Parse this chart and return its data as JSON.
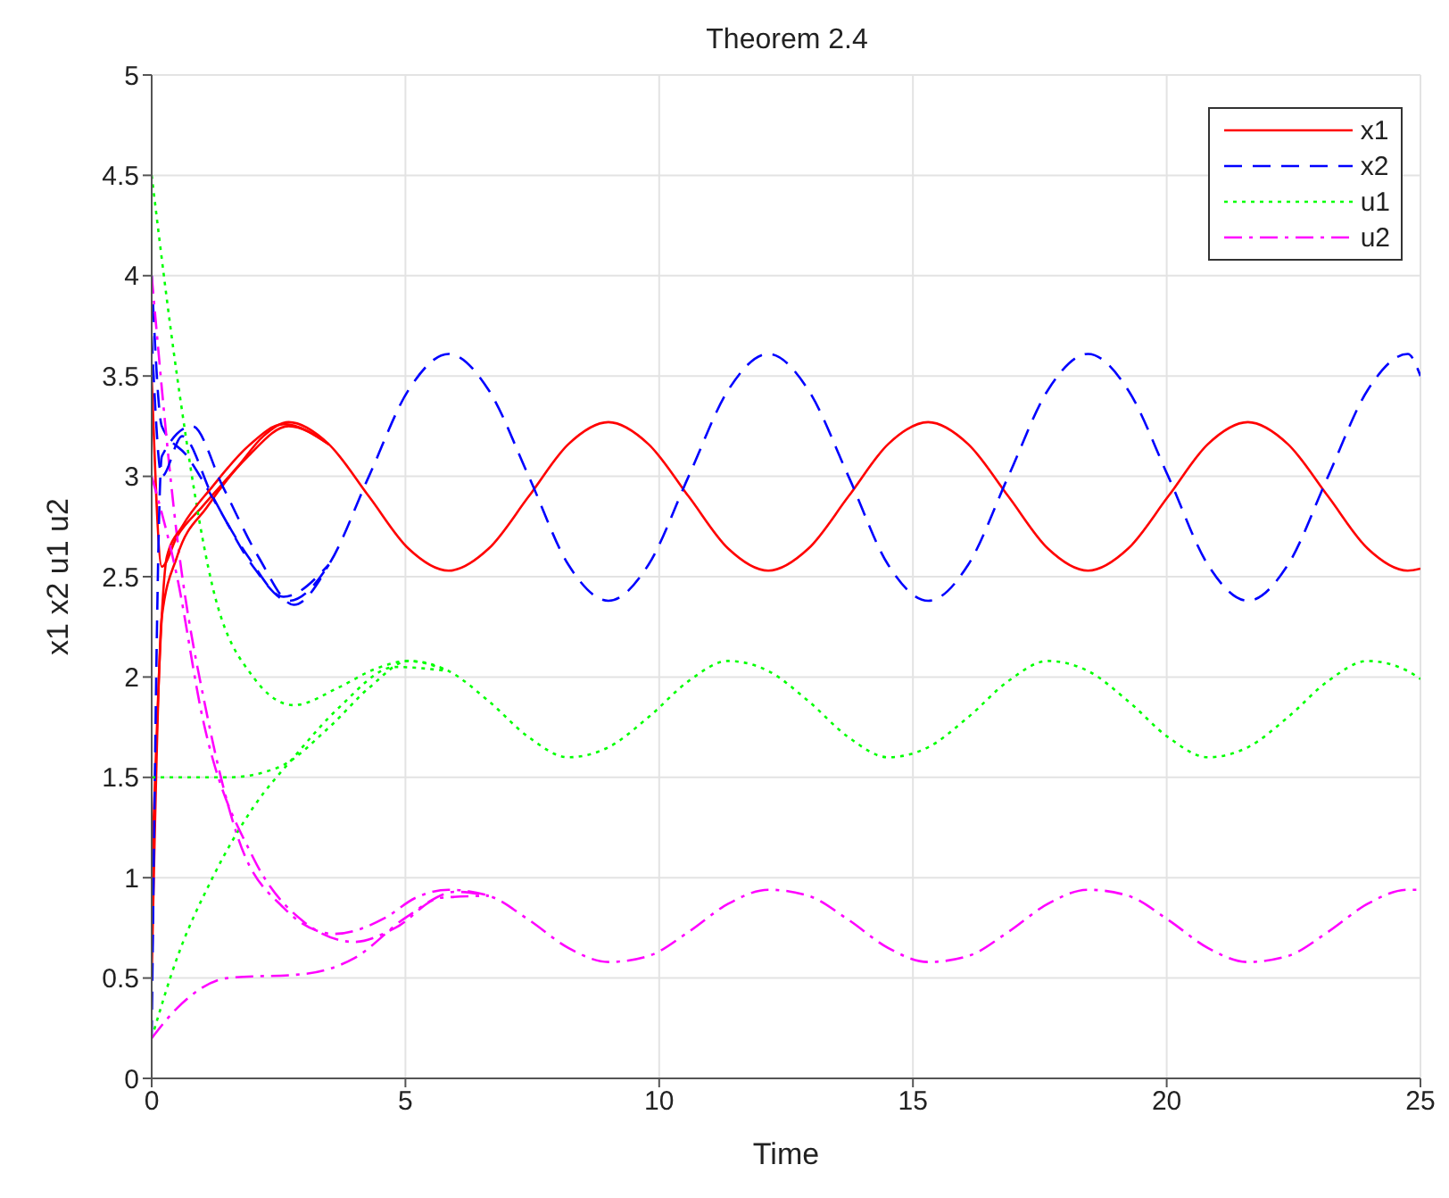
{
  "chart_data": {
    "type": "line",
    "title": "Theorem 2.4",
    "xlabel": "Time",
    "ylabel": "x1 x2 u1 u2",
    "xlim": [
      0,
      25
    ],
    "xticks": [
      0,
      5,
      10,
      15,
      20,
      25
    ],
    "ylim": [
      0,
      5
    ],
    "yticks": [
      0,
      0.5,
      1,
      1.5,
      2,
      2.5,
      3,
      3.5,
      4,
      4.5,
      5
    ],
    "grid": true,
    "legend": "top right",
    "series": [
      {
        "name": "x1",
        "color": "#ff0000",
        "line_style": "solid",
        "x": [
          0,
          0.2,
          0.5,
          1.0,
          1.7,
          2.2,
          2.7,
          3.49,
          4.28,
          5.06,
          5.85,
          6.64,
          7.43,
          8.21,
          9.0,
          9.79,
          10.58,
          11.36,
          12.15,
          12.94,
          13.73,
          14.51,
          15.3,
          16.09,
          16.88,
          17.66,
          18.45,
          19.24,
          20.03,
          20.81,
          21.6,
          22.39,
          23.18,
          23.96,
          24.75,
          25
        ],
        "values": [
          3.5,
          2.55,
          2.7,
          2.85,
          3.05,
          3.2,
          3.27,
          3.16,
          2.9,
          2.64,
          2.53,
          2.64,
          2.9,
          3.16,
          3.27,
          3.16,
          2.9,
          2.64,
          2.53,
          2.64,
          2.9,
          3.16,
          3.27,
          3.16,
          2.9,
          2.64,
          2.53,
          2.64,
          2.9,
          3.16,
          3.27,
          3.16,
          2.9,
          2.64,
          2.53,
          2.54
        ]
      },
      {
        "name": "x2",
        "color": "#0000ff",
        "line_style": "dashed",
        "x": [
          0,
          0.2,
          0.7,
          1.3,
          2.0,
          2.7,
          3.49,
          4.28,
          5.06,
          5.85,
          6.64,
          7.43,
          8.21,
          9.0,
          9.79,
          10.58,
          11.36,
          12.15,
          12.94,
          13.73,
          14.51,
          15.3,
          16.09,
          16.88,
          17.66,
          18.45,
          19.24,
          20.03,
          20.81,
          21.6,
          22.39,
          23.18,
          23.96,
          24.75,
          25
        ],
        "values": [
          4.0,
          3.25,
          3.1,
          2.85,
          2.55,
          2.38,
          2.56,
          3.0,
          3.43,
          3.61,
          3.43,
          3.0,
          2.56,
          2.38,
          2.56,
          3.0,
          3.43,
          3.61,
          3.43,
          3.0,
          2.56,
          2.38,
          2.56,
          3.0,
          3.43,
          3.61,
          3.43,
          3.0,
          2.56,
          2.38,
          2.56,
          3.0,
          3.43,
          3.61,
          3.5
        ]
      },
      {
        "name": "u1",
        "color": "#00ff00",
        "line_style": "dotted",
        "x": [
          0,
          0.5,
          1.2,
          2.0,
          2.8,
          3.7,
          4.4,
          5.06,
          5.85,
          6.64,
          7.43,
          8.21,
          9.0,
          9.79,
          10.58,
          11.36,
          12.15,
          12.94,
          13.73,
          14.51,
          15.3,
          16.09,
          16.88,
          17.66,
          18.45,
          19.24,
          20.03,
          20.81,
          21.6,
          22.39,
          23.18,
          23.96,
          24.75,
          25
        ],
        "values": [
          4.5,
          3.5,
          2.45,
          2.0,
          1.86,
          1.95,
          2.04,
          2.08,
          2.03,
          1.88,
          1.7,
          1.6,
          1.65,
          1.8,
          1.98,
          2.08,
          2.03,
          1.88,
          1.7,
          1.6,
          1.65,
          1.8,
          1.98,
          2.08,
          2.03,
          1.88,
          1.7,
          1.6,
          1.65,
          1.8,
          1.98,
          2.08,
          2.03,
          1.99
        ]
      },
      {
        "name": "u2",
        "color": "#ff00ff",
        "line_style": "dashdot",
        "x": [
          0,
          0.5,
          1.1,
          1.7,
          2.6,
          3.6,
          4.6,
          5.2,
          5.85,
          6.64,
          7.43,
          8.21,
          9.0,
          9.79,
          10.58,
          11.36,
          12.15,
          12.94,
          13.73,
          14.51,
          15.3,
          16.09,
          16.88,
          17.66,
          18.45,
          19.24,
          20.03,
          20.81,
          21.6,
          22.39,
          23.18,
          23.96,
          24.75,
          25
        ],
        "values": [
          4.0,
          2.7,
          1.8,
          1.2,
          0.85,
          0.72,
          0.8,
          0.9,
          0.94,
          0.91,
          0.79,
          0.65,
          0.58,
          0.61,
          0.73,
          0.87,
          0.94,
          0.91,
          0.79,
          0.65,
          0.58,
          0.61,
          0.73,
          0.87,
          0.94,
          0.91,
          0.79,
          0.65,
          0.58,
          0.61,
          0.73,
          0.87,
          0.94,
          0.94
        ]
      },
      {
        "color": "#ff0000",
        "line_style": "solid",
        "x": [
          0,
          0.3,
          0.6,
          1.2,
          1.9,
          2.6,
          3.49
        ],
        "values": [
          1.0,
          2.6,
          2.75,
          2.95,
          3.15,
          3.26,
          3.16
        ]
      },
      {
        "color": "#ff0000",
        "line_style": "solid",
        "x": [
          0,
          0.2,
          0.5,
          1.1,
          1.9,
          2.7,
          3.49
        ],
        "values": [
          0.5,
          2.3,
          2.6,
          2.85,
          3.1,
          3.25,
          3.16
        ]
      },
      {
        "color": "#0000ff",
        "line_style": "dashed",
        "x": [
          0,
          0.2,
          0.6,
          1.2,
          1.9,
          2.6,
          3.49
        ],
        "values": [
          3.7,
          3.0,
          3.2,
          2.9,
          2.6,
          2.4,
          2.56
        ]
      },
      {
        "color": "#0000ff",
        "line_style": "dashed",
        "x": [
          0,
          0.2,
          0.8,
          1.4,
          2.1,
          2.8,
          3.49
        ],
        "values": [
          0.2,
          3.1,
          3.25,
          2.95,
          2.6,
          2.36,
          2.56
        ]
      },
      {
        "color": "#00ff00",
        "line_style": "dotted",
        "x": [
          0,
          1.5,
          2.5,
          3.5,
          4.3,
          5.06,
          5.85
        ],
        "values": [
          1.5,
          1.5,
          1.55,
          1.75,
          1.95,
          2.08,
          2.03
        ]
      },
      {
        "color": "#00ff00",
        "line_style": "dotted",
        "x": [
          0,
          0.5,
          1.2,
          2.0,
          2.8,
          3.7,
          4.8,
          5.85
        ],
        "values": [
          0.2,
          0.6,
          1.0,
          1.35,
          1.6,
          1.85,
          2.05,
          2.03
        ]
      },
      {
        "color": "#ff00ff",
        "line_style": "dashdot",
        "x": [
          0,
          0.5,
          1.0,
          2.0,
          3.0,
          4.0,
          4.8,
          5.7,
          6.64
        ],
        "values": [
          3.0,
          2.5,
          1.8,
          1.1,
          0.78,
          0.68,
          0.75,
          0.9,
          0.91
        ]
      },
      {
        "color": "#ff00ff",
        "line_style": "dashdot",
        "x": [
          0,
          0.5,
          1.5,
          3.0,
          4.0,
          5.0,
          6.0,
          6.64
        ],
        "values": [
          0.2,
          0.35,
          0.5,
          0.52,
          0.6,
          0.8,
          0.93,
          0.91
        ]
      }
    ]
  }
}
